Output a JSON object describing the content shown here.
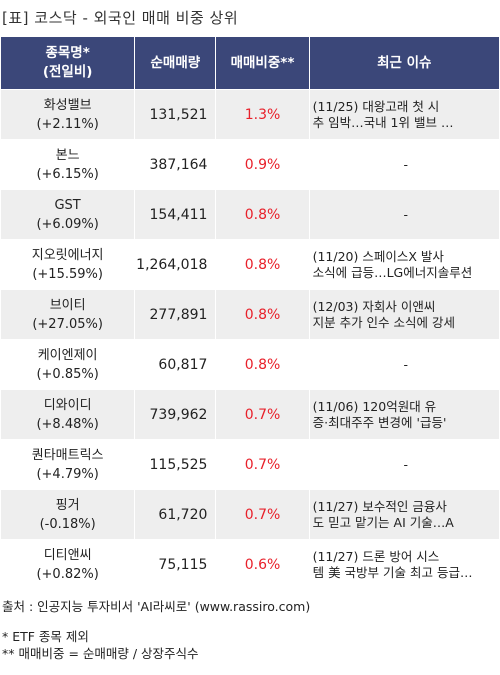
{
  "title": "[표] 코스닥 - 외국인 매매 비중 상위",
  "header": {
    "name_line1": "종목명*",
    "name_line2": "(전일비)",
    "volume": "순매매량",
    "ratio": "매매비중**",
    "issue": "최근 이슈"
  },
  "rows": [
    {
      "name": "화성밸브",
      "change": "(+2.11%)",
      "volume": "131,521",
      "ratio": "1.3%",
      "issue1": "(11/25) 대왕고래 첫 시",
      "issue2": "추 임박…국내 1위 밸브 …"
    },
    {
      "name": "본느",
      "change": "(+6.15%)",
      "volume": "387,164",
      "ratio": "0.9%",
      "issue1": "-",
      "issue2": ""
    },
    {
      "name": "GST",
      "change": "(+6.09%)",
      "volume": "154,411",
      "ratio": "0.8%",
      "issue1": "-",
      "issue2": ""
    },
    {
      "name": "지오릿에너지",
      "change": "(+15.59%)",
      "volume": "1,264,018",
      "ratio": "0.8%",
      "issue1": "(11/20) 스페이스X 발사",
      "issue2": " 소식에 급등…LG에너지솔루션"
    },
    {
      "name": "브이티",
      "change": "(+27.05%)",
      "volume": "277,891",
      "ratio": "0.8%",
      "issue1": "(12/03) 자회사 이앤씨",
      "issue2": "지분 추가 인수 소식에 강세"
    },
    {
      "name": "케이엔제이",
      "change": "(+0.85%)",
      "volume": "60,817",
      "ratio": "0.8%",
      "issue1": "-",
      "issue2": ""
    },
    {
      "name": "디와이디",
      "change": "(+8.48%)",
      "volume": "739,962",
      "ratio": "0.7%",
      "issue1": "(11/06) 120억원대 유",
      "issue2": "증·최대주주 변경에 '급등'"
    },
    {
      "name": "퀀타매트릭스",
      "change": "(+4.79%)",
      "volume": "115,525",
      "ratio": "0.7%",
      "issue1": "-",
      "issue2": ""
    },
    {
      "name": "핑거",
      "change": "(-0.18%)",
      "volume": "61,720",
      "ratio": "0.7%",
      "issue1": "(11/27) 보수적인 금융사",
      "issue2": "도 믿고 맡기는 AI 기술…A"
    },
    {
      "name": "디티앤씨",
      "change": "(+0.82%)",
      "volume": "75,115",
      "ratio": "0.6%",
      "issue1": "(11/27) 드론 방어 시스",
      "issue2": "템 美 국방부 기술 최고 등급…"
    }
  ],
  "footer": {
    "source": "출처 : 인공지능 투자비서 'AI라씨로' (www.rassiro.com)",
    "note1": "* ETF 종목 제외",
    "note2": "** 매매비중 = 순매매량 / 상장주식수"
  },
  "colors": {
    "header_bg": "#3b4779",
    "ratio_text": "#e8202a",
    "row_shade": "#eeeeee"
  }
}
